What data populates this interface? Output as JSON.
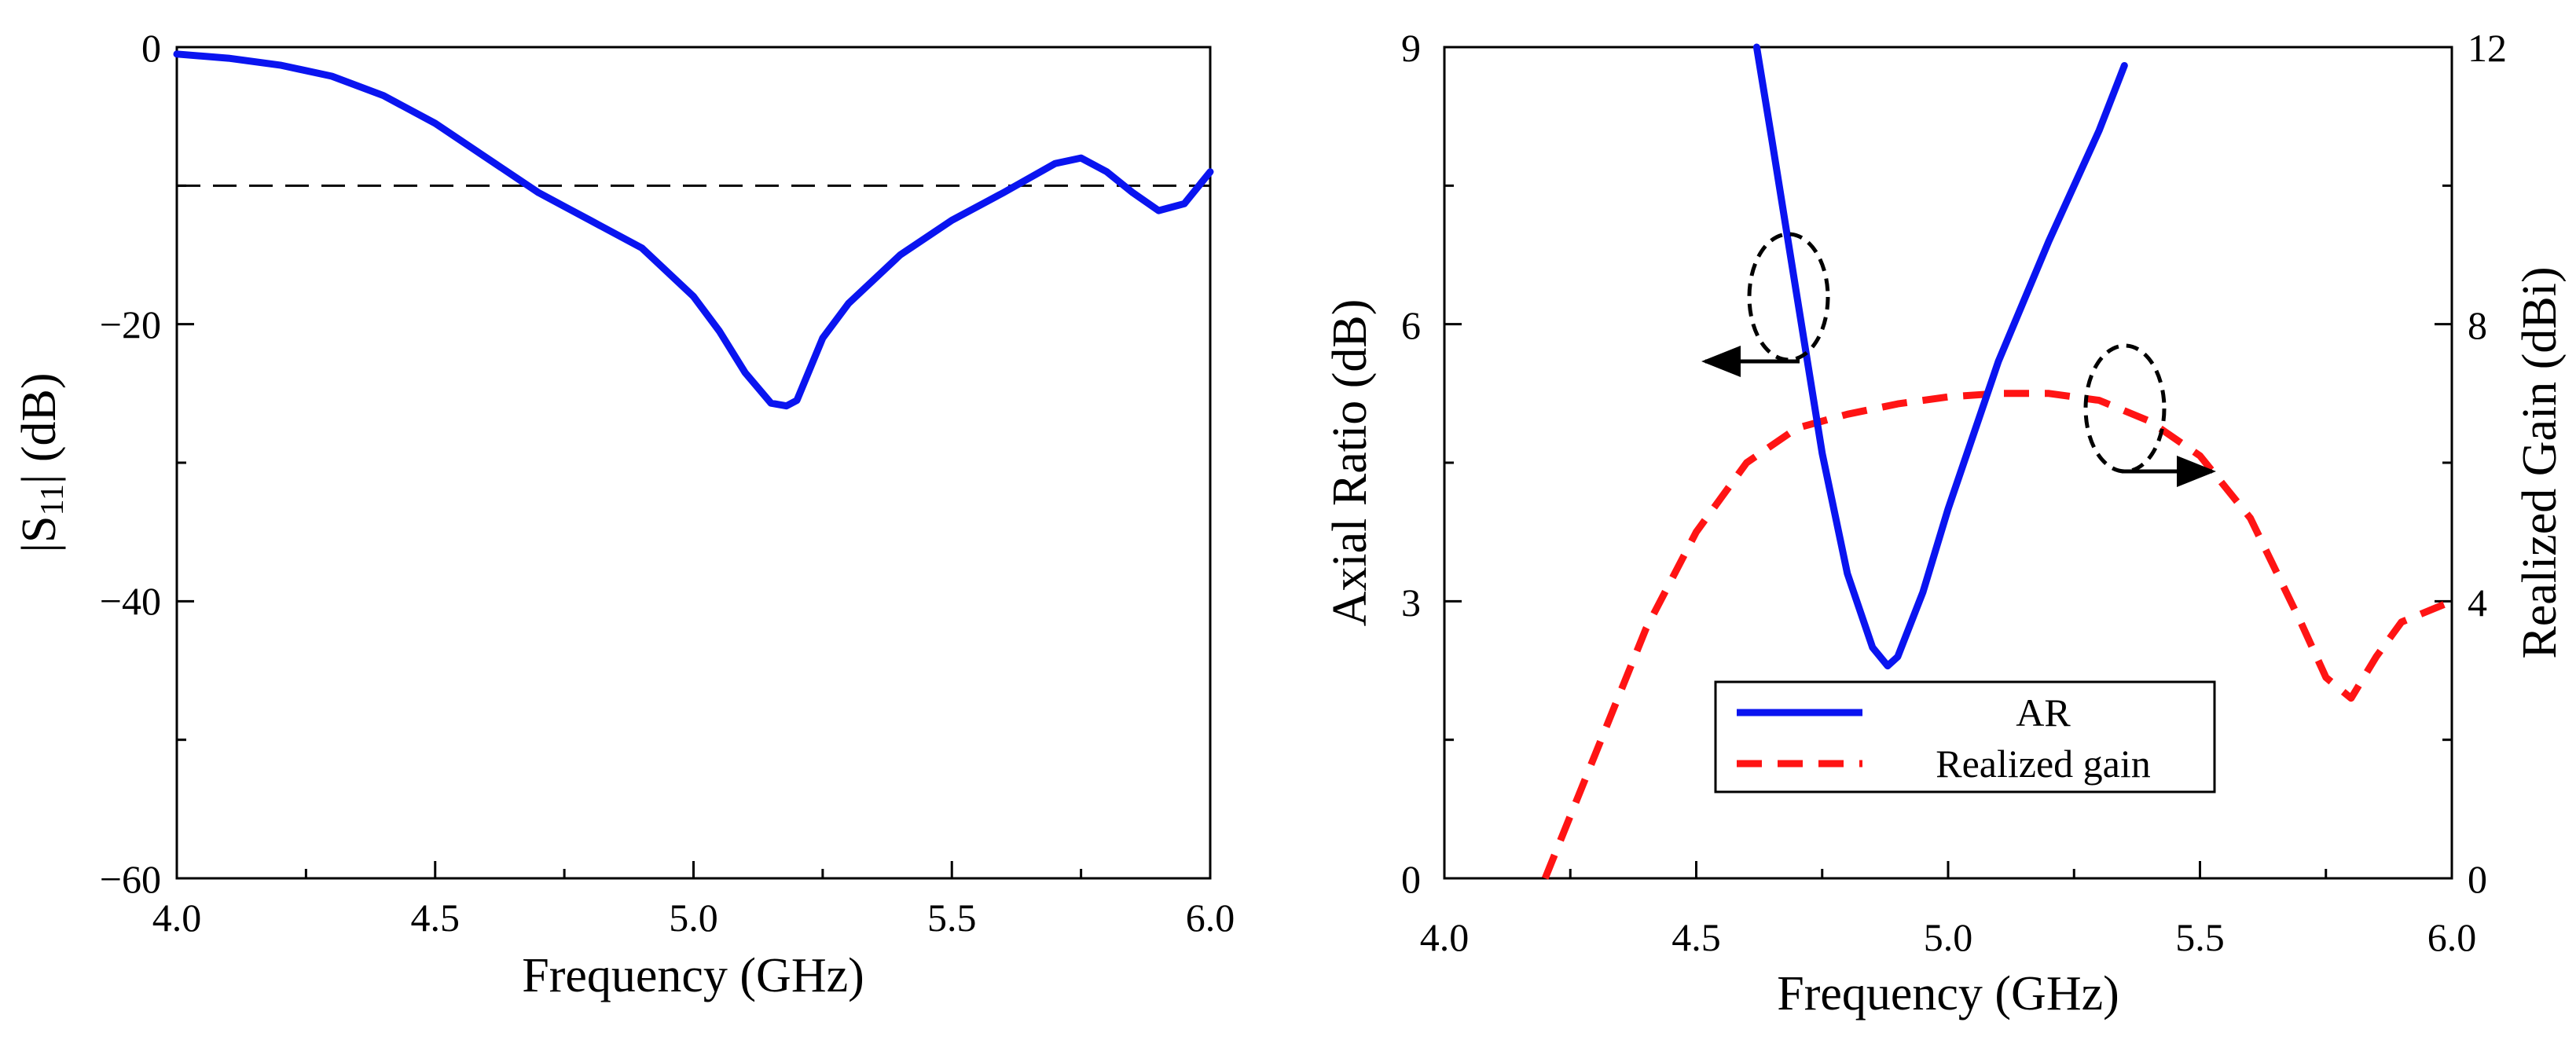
{
  "chart_data": [
    {
      "type": "line",
      "xlabel": "Frequency (GHz)",
      "ylabel_parts": [
        "|S",
        "11",
        "| (dB)"
      ],
      "xlim": [
        4.0,
        6.0
      ],
      "ylim": [
        -60,
        0
      ],
      "xticks": [
        4.0,
        4.5,
        5.0,
        5.5,
        6.0
      ],
      "xtick_labels": [
        "4.0",
        "4.5",
        "5.0",
        "5.5",
        "6.0"
      ],
      "yticks": [
        0,
        -20,
        -40,
        -60
      ],
      "ytick_labels": [
        "0",
        "−20",
        "−40",
        "−60"
      ],
      "reference_line": {
        "y": -10,
        "style": "dashed",
        "color": "#000000"
      },
      "series": [
        {
          "name": "S11",
          "color": "#0a14f0",
          "style": "solid",
          "x": [
            4.0,
            4.1,
            4.2,
            4.3,
            4.4,
            4.5,
            4.6,
            4.7,
            4.75,
            4.8,
            4.9,
            5.0,
            5.05,
            5.1,
            5.15,
            5.18,
            5.2,
            5.25,
            5.3,
            5.4,
            5.5,
            5.6,
            5.7,
            5.75,
            5.8,
            5.85,
            5.9,
            5.95,
            6.0
          ],
          "y": [
            -0.5,
            -0.8,
            -1.3,
            -2.1,
            -3.5,
            -5.5,
            -8.0,
            -10.5,
            -11.5,
            -12.5,
            -14.5,
            -18.0,
            -20.5,
            -23.5,
            -25.7,
            -25.9,
            -25.5,
            -21.0,
            -18.5,
            -15.0,
            -12.5,
            -10.5,
            -8.4,
            -8.0,
            -9.0,
            -10.5,
            -11.8,
            -11.3,
            -9.0
          ]
        }
      ]
    },
    {
      "type": "line",
      "xlabel": "Frequency (GHz)",
      "ylabel": "Axial Ratio (dB)",
      "ylabel_right": "Realized Gain (dBi)",
      "xlim": [
        4.0,
        6.0
      ],
      "ylim": [
        0,
        9
      ],
      "ylim_right": [
        0,
        12
      ],
      "xticks": [
        4.0,
        4.5,
        5.0,
        5.5,
        6.0
      ],
      "xtick_labels": [
        "4.0",
        "4.5",
        "5.0",
        "5.5",
        "6.0"
      ],
      "yticks": [
        0,
        3,
        6,
        9
      ],
      "ytick_labels": [
        "0",
        "3",
        "6",
        "9"
      ],
      "yticks_right": [
        0,
        4,
        8,
        12
      ],
      "ytick_labels_right": [
        "0",
        "4",
        "8",
        "12"
      ],
      "legend": {
        "position": "lower-center",
        "entries": [
          "AR",
          "Realized gain"
        ]
      },
      "series": [
        {
          "name": "AR",
          "axis": "left",
          "color": "#0a14f0",
          "style": "solid",
          "x": [
            4.62,
            4.65,
            4.7,
            4.75,
            4.8,
            4.85,
            4.88,
            4.9,
            4.95,
            5.0,
            5.1,
            5.2,
            5.3,
            5.35
          ],
          "y": [
            9.0,
            8.0,
            6.3,
            4.6,
            3.3,
            2.5,
            2.3,
            2.4,
            3.1,
            4.0,
            5.6,
            6.9,
            8.1,
            8.8
          ]
        },
        {
          "name": "Realized gain",
          "axis": "right",
          "color": "#ff1414",
          "style": "dashed",
          "x": [
            4.2,
            4.3,
            4.4,
            4.5,
            4.6,
            4.7,
            4.8,
            4.9,
            5.0,
            5.1,
            5.2,
            5.3,
            5.4,
            5.5,
            5.6,
            5.7,
            5.75,
            5.8,
            5.85,
            5.9,
            6.0
          ],
          "y": [
            0.0,
            1.8,
            3.6,
            5.0,
            6.0,
            6.5,
            6.7,
            6.85,
            6.95,
            7.0,
            7.0,
            6.9,
            6.6,
            6.1,
            5.2,
            3.7,
            2.9,
            2.6,
            3.2,
            3.7,
            4.0
          ]
        }
      ],
      "annotations": [
        {
          "type": "ellipse-arrow",
          "points_to": "left-axis",
          "near_series": "AR"
        },
        {
          "type": "ellipse-arrow",
          "points_to": "right-axis",
          "near_series": "Realized gain"
        }
      ]
    }
  ]
}
